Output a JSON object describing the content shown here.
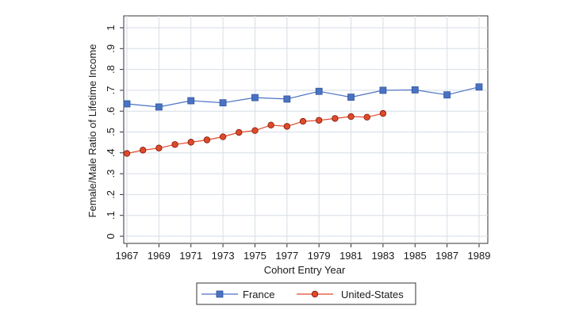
{
  "chart_data": {
    "type": "line",
    "xlabel": "Cohort Entry Year",
    "ylabel": "Female/Male Ratio of Lifetime Income",
    "xlim": [
      1967,
      1989
    ],
    "ylim": [
      0,
      1
    ],
    "x_ticks": [
      "1967",
      "1969",
      "1971",
      "1973",
      "1975",
      "1977",
      "1979",
      "1981",
      "1983",
      "1985",
      "1987",
      "1989"
    ],
    "y_ticks": [
      "0",
      ".1",
      ".2",
      ".3",
      ".4",
      ".5",
      ".6",
      ".7",
      ".8",
      ".9",
      "1"
    ],
    "grid": true,
    "legend_position": "bottom",
    "series": [
      {
        "name": "France",
        "color": "#4a72c4",
        "marker": "square",
        "points": [
          {
            "x": 1967,
            "y": 0.635
          },
          {
            "x": 1969,
            "y": 0.62
          },
          {
            "x": 1971,
            "y": 0.65
          },
          {
            "x": 1973,
            "y": 0.64
          },
          {
            "x": 1975,
            "y": 0.665
          },
          {
            "x": 1977,
            "y": 0.658
          },
          {
            "x": 1979,
            "y": 0.695
          },
          {
            "x": 1981,
            "y": 0.667
          },
          {
            "x": 1983,
            "y": 0.7
          },
          {
            "x": 1985,
            "y": 0.702
          },
          {
            "x": 1987,
            "y": 0.678
          },
          {
            "x": 1989,
            "y": 0.716
          }
        ]
      },
      {
        "name": "United-States",
        "color": "#e0492a",
        "marker": "circle",
        "points": [
          {
            "x": 1967,
            "y": 0.397
          },
          {
            "x": 1968,
            "y": 0.413
          },
          {
            "x": 1969,
            "y": 0.423
          },
          {
            "x": 1970,
            "y": 0.44
          },
          {
            "x": 1971,
            "y": 0.451
          },
          {
            "x": 1972,
            "y": 0.462
          },
          {
            "x": 1973,
            "y": 0.477
          },
          {
            "x": 1974,
            "y": 0.498
          },
          {
            "x": 1975,
            "y": 0.507
          },
          {
            "x": 1976,
            "y": 0.533
          },
          {
            "x": 1977,
            "y": 0.527
          },
          {
            "x": 1978,
            "y": 0.551
          },
          {
            "x": 1979,
            "y": 0.556
          },
          {
            "x": 1980,
            "y": 0.565
          },
          {
            "x": 1981,
            "y": 0.574
          },
          {
            "x": 1982,
            "y": 0.571
          },
          {
            "x": 1983,
            "y": 0.589
          }
        ]
      }
    ]
  }
}
